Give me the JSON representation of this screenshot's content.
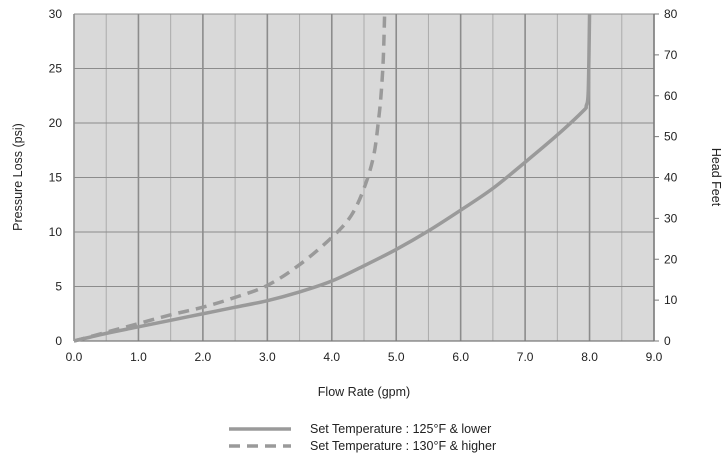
{
  "chart_data": {
    "type": "line",
    "title": "",
    "xlabel": "Flow Rate (gpm)",
    "ylabel": "Pressure Loss (psi)",
    "y2label": "Head Feet",
    "xlim": [
      0,
      9
    ],
    "ylim": [
      0,
      30
    ],
    "y2lim": [
      0,
      80
    ],
    "x_ticks": [
      "0.0",
      "1.0",
      "2.0",
      "3.0",
      "4.0",
      "5.0",
      "6.0",
      "7.0",
      "8.0",
      "9.0"
    ],
    "y_ticks": [
      "0",
      "5",
      "10",
      "15",
      "20",
      "25",
      "30"
    ],
    "y2_ticks": [
      "0",
      "10",
      "20",
      "30",
      "40",
      "50",
      "60",
      "70",
      "80"
    ],
    "grid": true,
    "legend_position": "bottom-center",
    "colors": {
      "plot_background": "#d9d9d9",
      "grid": "#8c8c8c",
      "series": "#9a9a9a"
    },
    "series": [
      {
        "name": "Set Temperature : 125°F & lower",
        "style": "solid",
        "x": [
          0,
          0.5,
          1.0,
          1.5,
          2.0,
          2.5,
          3.0,
          3.5,
          4.0,
          4.5,
          5.0,
          5.5,
          6.0,
          6.5,
          7.0,
          7.5,
          7.9,
          7.95,
          7.98,
          8.0
        ],
        "y": [
          0,
          0.7,
          1.3,
          1.9,
          2.5,
          3.1,
          3.7,
          4.5,
          5.5,
          6.9,
          8.4,
          10.1,
          12.0,
          14.0,
          16.4,
          18.9,
          21.1,
          21.6,
          23.0,
          30.0
        ]
      },
      {
        "name": "Set Temperature : 130°F & higher",
        "style": "dashed",
        "x": [
          0,
          0.5,
          1.0,
          1.5,
          2.0,
          2.5,
          3.0,
          3.5,
          4.0,
          4.3,
          4.5,
          4.65,
          4.73,
          4.77,
          4.8,
          4.82
        ],
        "y": [
          0,
          0.8,
          1.6,
          2.4,
          3.1,
          4.0,
          5.1,
          7.0,
          9.5,
          11.5,
          14.0,
          17.0,
          20.5,
          23.0,
          26.0,
          30.0
        ]
      }
    ]
  }
}
